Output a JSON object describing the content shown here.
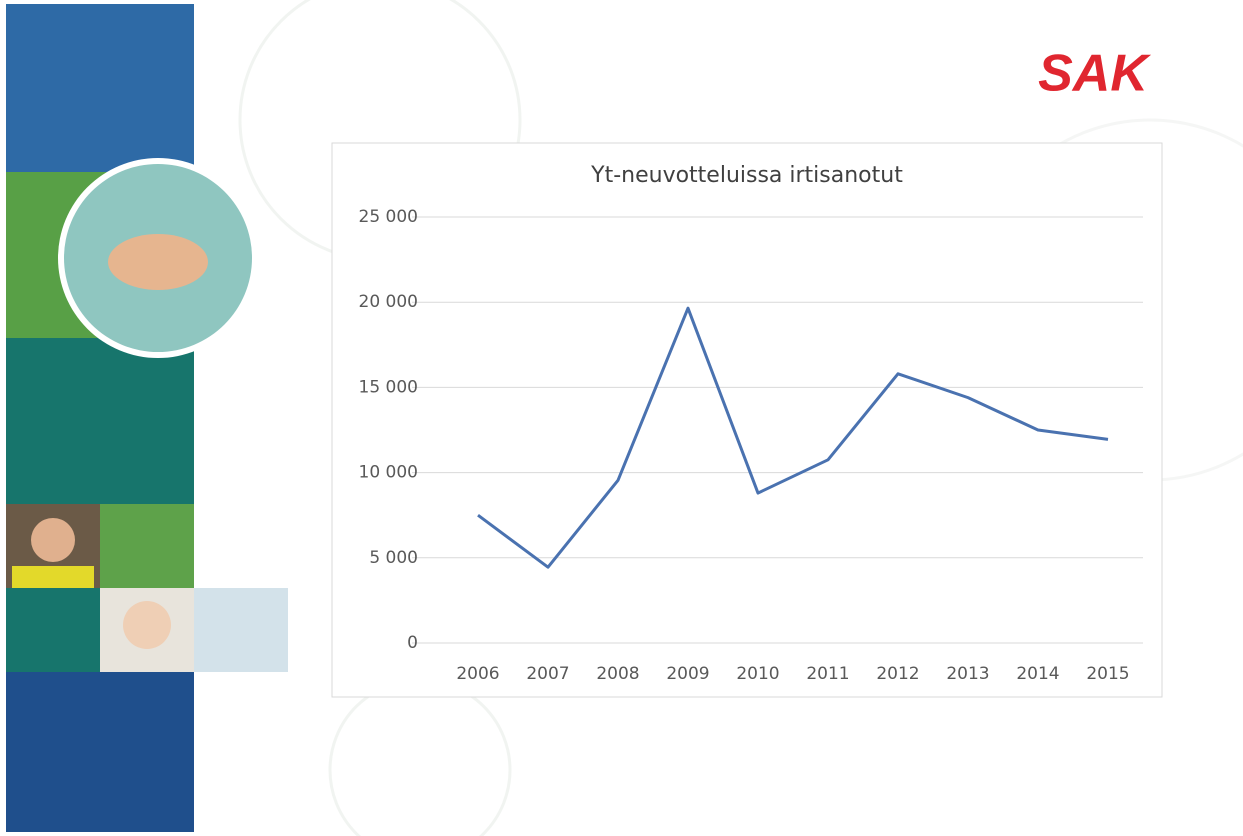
{
  "logo": "SAK",
  "chart_data": {
    "type": "line",
    "title": "Yt-neuvotteluissa irtisanotut",
    "categories": [
      "2006",
      "2007",
      "2008",
      "2009",
      "2010",
      "2011",
      "2012",
      "2013",
      "2014",
      "2015"
    ],
    "series": [
      {
        "name": "Yt-neuvotteluissa irtisanotut",
        "color": "#4a72b0",
        "values": [
          7500,
          4450,
          9550,
          19650,
          8800,
          10750,
          15800,
          14400,
          12500,
          11950
        ]
      }
    ],
    "ylim": [
      0,
      25000
    ],
    "yticks": [
      0,
      {
        "value": 5000,
        "label": "5 000"
      },
      {
        "value": 10000,
        "label": "10 000"
      },
      {
        "value": 15000,
        "label": "15 000"
      },
      {
        "value": 20000,
        "label": "20 000"
      },
      {
        "value": 25000,
        "label": "25 000"
      }
    ],
    "grid": true
  }
}
